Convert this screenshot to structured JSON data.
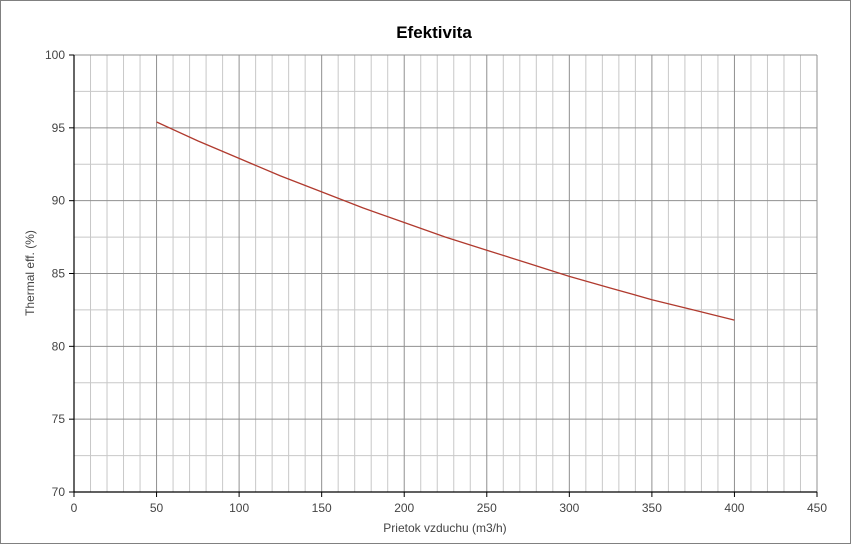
{
  "chart_data": {
    "type": "line",
    "title": "Efektivita",
    "xlabel": "Prietok vzduchu (m3/h)",
    "ylabel": "Thermal eff. (%)",
    "xlim": [
      0,
      450
    ],
    "ylim": [
      70,
      100
    ],
    "x_ticks": [
      0,
      50,
      100,
      150,
      200,
      250,
      300,
      350,
      400,
      450
    ],
    "y_ticks": [
      70,
      75,
      80,
      85,
      90,
      95,
      100
    ],
    "x_minor_step": 10,
    "y_minor_step": 2.5,
    "grid": true,
    "legend": "none",
    "colors": {
      "line": "#b03a2e",
      "grid_major": "#909090",
      "grid_minor": "#c8c8c8",
      "axis": "#000000"
    },
    "series": [
      {
        "x": [
          50,
          75,
          100,
          125,
          150,
          175,
          200,
          225,
          250,
          275,
          300,
          325,
          350,
          375,
          400
        ],
        "y": [
          95.4,
          94.1,
          92.9,
          91.7,
          90.6,
          89.5,
          88.5,
          87.5,
          86.6,
          85.7,
          84.8,
          84.0,
          83.2,
          82.5,
          81.8
        ]
      }
    ]
  }
}
